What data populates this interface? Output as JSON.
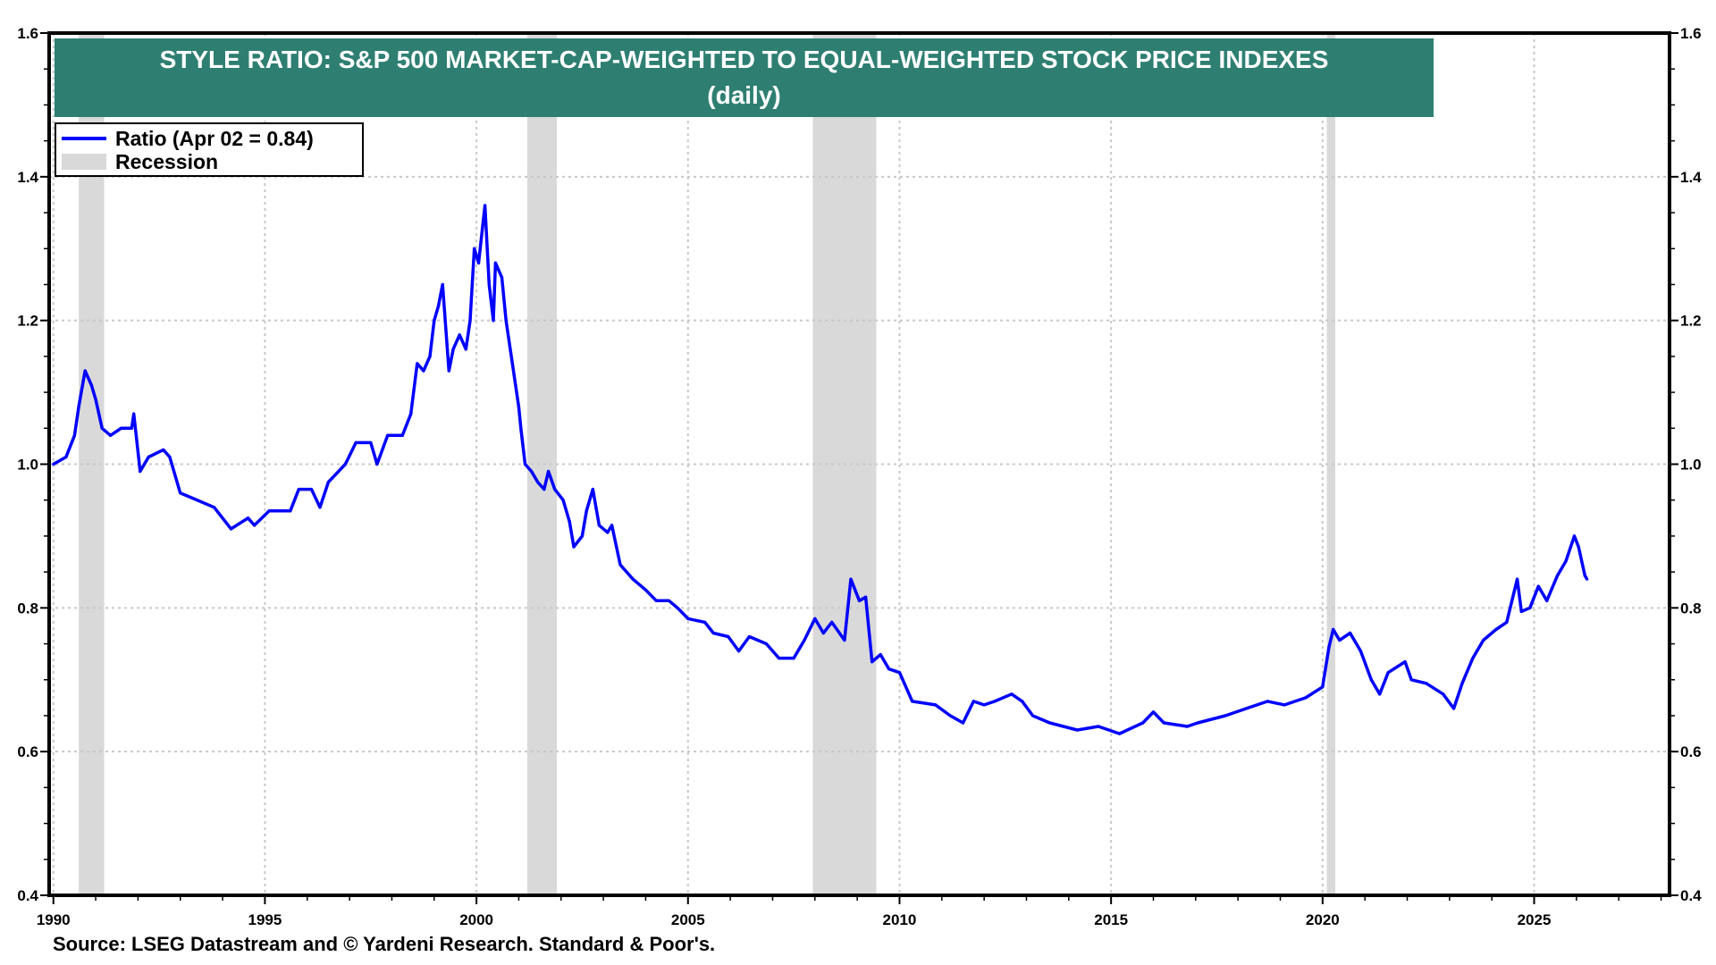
{
  "title": {
    "line1": "STYLE RATIO: S&P 500 MARKET-CAP-WEIGHTED TO EQUAL-WEIGHTED STOCK PRICE INDEXES",
    "line2": "(daily)",
    "background_color": "#2e7f72"
  },
  "legend": {
    "ratio_label": "Ratio (Apr 02 = 0.84)",
    "recession_label": "Recession"
  },
  "source": "Source: LSEG Datastream and © Yardeni Research. Standard & Poor's.",
  "chart_data": {
    "type": "line",
    "title": "STYLE RATIO: S&P 500 MARKET-CAP-WEIGHTED TO EQUAL-WEIGHTED STOCK PRICE INDEXES (daily)",
    "xlabel": "",
    "ylabel": "",
    "xlim": [
      1989.9,
      2028.2
    ],
    "ylim": [
      0.4,
      1.6
    ],
    "x_ticks": [
      "1990",
      "1995",
      "2000",
      "2005",
      "2010",
      "2015",
      "2020",
      "2025"
    ],
    "y_ticks": [
      "0.4",
      "0.6",
      "0.8",
      "1.0",
      "1.2",
      "1.4",
      "1.6"
    ],
    "y_axis_both_sides": true,
    "grid": true,
    "legend_position": "top-left",
    "recessions": [
      [
        1990.6,
        1991.2
      ],
      [
        2001.2,
        2001.9
      ],
      [
        2007.95,
        2009.45
      ],
      [
        2020.1,
        2020.3
      ]
    ],
    "colors": {
      "series": "#0000ff",
      "recession": "#d9d9d9",
      "grid": "#c8c8c8"
    },
    "series": [
      {
        "name": "Ratio (Apr 02 = 0.84)",
        "x": [
          1990.0,
          1990.3,
          1990.5,
          1990.6,
          1990.75,
          1990.9,
          1991.0,
          1991.15,
          1991.35,
          1991.6,
          1991.85,
          1991.9,
          1992.05,
          1992.25,
          1992.6,
          1992.75,
          1993.0,
          1993.4,
          1993.8,
          1994.2,
          1994.6,
          1994.75,
          1995.1,
          1995.6,
          1995.8,
          1996.1,
          1996.3,
          1996.5,
          1996.9,
          1997.15,
          1997.5,
          1997.65,
          1997.9,
          1998.25,
          1998.45,
          1998.6,
          1998.75,
          1998.9,
          1999.0,
          1999.1,
          1999.2,
          1999.35,
          1999.45,
          1999.6,
          1999.75,
          1999.85,
          1999.95,
          2000.05,
          2000.2,
          2000.3,
          2000.4,
          2000.45,
          2000.6,
          2000.7,
          2000.85,
          2001.0,
          2001.05,
          2001.15,
          2001.3,
          2001.45,
          2001.6,
          2001.7,
          2001.85,
          2002.05,
          2002.2,
          2002.3,
          2002.5,
          2002.6,
          2002.75,
          2002.9,
          2003.1,
          2003.2,
          2003.4,
          2003.7,
          2004.0,
          2004.25,
          2004.55,
          2004.75,
          2005.0,
          2005.4,
          2005.6,
          2005.95,
          2006.2,
          2006.45,
          2006.85,
          2007.15,
          2007.5,
          2007.75,
          2008.0,
          2008.2,
          2008.4,
          2008.7,
          2008.85,
          2009.05,
          2009.2,
          2009.35,
          2009.55,
          2009.75,
          2010.0,
          2010.3,
          2010.85,
          2011.2,
          2011.5,
          2011.75,
          2012.0,
          2012.25,
          2012.65,
          2012.9,
          2013.15,
          2013.55,
          2014.2,
          2014.7,
          2015.2,
          2015.75,
          2016.0,
          2016.25,
          2016.8,
          2017.05,
          2017.7,
          2018.2,
          2018.7,
          2019.1,
          2019.6,
          2020.0,
          2020.15,
          2020.25,
          2020.4,
          2020.65,
          2020.9,
          2021.15,
          2021.35,
          2021.55,
          2021.95,
          2022.1,
          2022.45,
          2022.85,
          2023.1,
          2023.3,
          2023.55,
          2023.8,
          2024.1,
          2024.35,
          2024.6,
          2024.7,
          2024.9,
          2025.1,
          2025.3,
          2025.55,
          2025.75,
          2025.95,
          2026.05,
          2026.2,
          2026.25
        ],
        "y": [
          1.0,
          1.01,
          1.04,
          1.08,
          1.13,
          1.11,
          1.09,
          1.05,
          1.04,
          1.05,
          1.05,
          1.07,
          0.99,
          1.01,
          1.02,
          1.01,
          0.96,
          0.95,
          0.94,
          0.91,
          0.925,
          0.915,
          0.935,
          0.935,
          0.965,
          0.965,
          0.94,
          0.975,
          1.0,
          1.03,
          1.03,
          1.0,
          1.04,
          1.04,
          1.07,
          1.14,
          1.13,
          1.15,
          1.2,
          1.22,
          1.25,
          1.13,
          1.16,
          1.18,
          1.16,
          1.2,
          1.3,
          1.28,
          1.36,
          1.25,
          1.2,
          1.28,
          1.26,
          1.2,
          1.14,
          1.08,
          1.05,
          1.0,
          0.99,
          0.975,
          0.965,
          0.99,
          0.965,
          0.95,
          0.92,
          0.885,
          0.9,
          0.935,
          0.965,
          0.915,
          0.905,
          0.915,
          0.86,
          0.84,
          0.825,
          0.81,
          0.81,
          0.8,
          0.785,
          0.78,
          0.765,
          0.76,
          0.74,
          0.76,
          0.75,
          0.73,
          0.73,
          0.755,
          0.785,
          0.765,
          0.78,
          0.755,
          0.84,
          0.81,
          0.815,
          0.725,
          0.735,
          0.715,
          0.71,
          0.67,
          0.665,
          0.65,
          0.64,
          0.67,
          0.665,
          0.67,
          0.68,
          0.67,
          0.65,
          0.64,
          0.63,
          0.635,
          0.625,
          0.64,
          0.655,
          0.64,
          0.635,
          0.64,
          0.65,
          0.66,
          0.67,
          0.665,
          0.675,
          0.69,
          0.745,
          0.77,
          0.755,
          0.765,
          0.74,
          0.7,
          0.68,
          0.71,
          0.725,
          0.7,
          0.695,
          0.68,
          0.66,
          0.695,
          0.73,
          0.755,
          0.77,
          0.78,
          0.84,
          0.795,
          0.8,
          0.83,
          0.81,
          0.845,
          0.865,
          0.9,
          0.885,
          0.845,
          0.84
        ]
      }
    ]
  }
}
